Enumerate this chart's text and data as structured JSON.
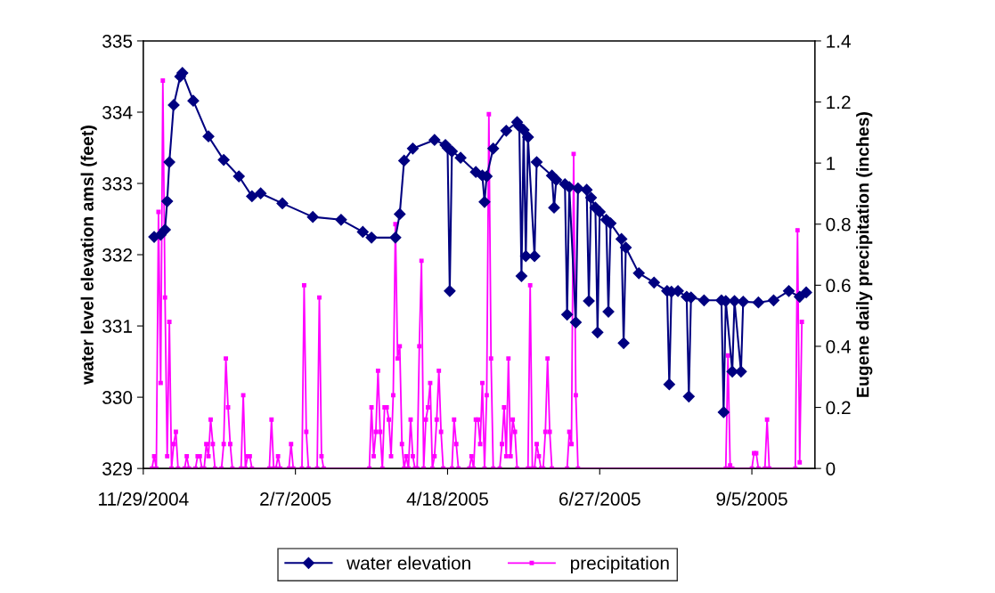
{
  "chart_data": {
    "type": "line",
    "ylabel": "water level elevation amsl (feet)",
    "y2label": "Eugene daily precipitation (inches)",
    "xlim": [
      "2004-11-29",
      "2005-10-04"
    ],
    "xticks": [
      {
        "value": "2004-11-29",
        "label": "11/29/2004"
      },
      {
        "value": "2005-02-07",
        "label": "2/7/2005"
      },
      {
        "value": "2005-04-18",
        "label": "4/18/2005"
      },
      {
        "value": "2005-06-27",
        "label": "6/27/2005"
      },
      {
        "value": "2005-09-05",
        "label": "9/5/2005"
      }
    ],
    "ylim": [
      329,
      335
    ],
    "yticks": [
      329,
      330,
      331,
      332,
      333,
      334,
      335
    ],
    "y2lim": [
      0,
      1.4
    ],
    "y2ticks": [
      0,
      0.2,
      0.4,
      0.6,
      0.8,
      1,
      1.2,
      1.4
    ],
    "grid": false,
    "legend": "bottom",
    "series": [
      {
        "name": "water elevation",
        "color": "#000080",
        "marker": "diamond",
        "x": [
          "2004-12-04",
          "2004-12-07",
          "2004-12-09",
          "2004-12-10",
          "2004-12-11",
          "2004-12-13",
          "2004-12-16",
          "2004-12-17",
          "2004-12-22",
          "2004-12-29",
          "2005-01-05",
          "2005-01-12",
          "2005-01-18",
          "2005-01-22",
          "2005-02-01",
          "2005-02-15",
          "2005-02-28",
          "2005-03-10",
          "2005-03-14",
          "2005-03-25",
          "2005-03-27",
          "2005-03-29",
          "2005-04-02",
          "2005-04-12",
          "2005-04-17",
          "2005-04-18",
          "2005-04-19",
          "2005-04-20",
          "2005-04-24",
          "2005-05-01",
          "2005-05-04",
          "2005-05-05",
          "2005-05-06",
          "2005-05-09",
          "2005-05-15",
          "2005-05-20",
          "2005-05-21",
          "2005-05-22",
          "2005-05-23",
          "2005-05-24",
          "2005-05-25",
          "2005-05-28",
          "2005-05-29",
          "2005-06-05",
          "2005-06-06",
          "2005-06-07",
          "2005-06-11",
          "2005-06-12",
          "2005-06-13",
          "2005-06-16",
          "2005-06-17",
          "2005-06-21",
          "2005-06-22",
          "2005-06-23",
          "2005-06-25",
          "2005-06-26",
          "2005-06-27",
          "2005-06-30",
          "2005-07-01",
          "2005-07-02",
          "2005-07-07",
          "2005-07-08",
          "2005-07-09",
          "2005-07-15",
          "2005-07-22",
          "2005-07-28",
          "2005-07-29",
          "2005-07-30",
          "2005-08-02",
          "2005-08-06",
          "2005-08-07",
          "2005-08-08",
          "2005-08-14",
          "2005-08-22",
          "2005-08-23",
          "2005-08-24",
          "2005-08-27",
          "2005-08-28",
          "2005-08-31",
          "2005-09-01",
          "2005-09-08",
          "2005-09-15",
          "2005-09-22",
          "2005-09-27",
          "2005-09-30"
        ],
        "values": [
          332.25,
          332.28,
          332.35,
          332.75,
          333.3,
          334.1,
          334.5,
          334.55,
          334.16,
          333.66,
          333.33,
          333.1,
          332.82,
          332.86,
          332.72,
          332.53,
          332.49,
          332.32,
          332.24,
          332.24,
          332.57,
          333.32,
          333.49,
          333.61,
          333.54,
          333.5,
          331.49,
          333.45,
          333.36,
          333.16,
          333.11,
          332.74,
          333.1,
          333.49,
          333.74,
          333.86,
          333.8,
          331.7,
          333.75,
          331.98,
          333.65,
          331.98,
          333.3,
          333.11,
          332.66,
          333.05,
          332.99,
          331.16,
          332.95,
          331.05,
          332.93,
          332.91,
          331.35,
          332.8,
          332.66,
          330.91,
          332.6,
          332.49,
          331.2,
          332.44,
          332.22,
          330.76,
          332.1,
          331.74,
          331.61,
          331.49,
          330.18,
          331.48,
          331.49,
          331.41,
          330.01,
          331.4,
          331.36,
          331.36,
          329.79,
          331.35,
          330.36,
          331.35,
          330.36,
          331.34,
          331.33,
          331.36,
          331.49,
          331.41,
          331.47
        ]
      },
      {
        "name": "precipitation",
        "color": "#ff00ff",
        "marker": "square",
        "axis": "y2",
        "x": [
          "2004-12-03",
          "2004-12-04",
          "2004-12-05",
          "2004-12-06",
          "2004-12-07",
          "2004-12-08",
          "2004-12-09",
          "2004-12-10",
          "2004-12-11",
          "2004-12-12",
          "2004-12-13",
          "2004-12-14",
          "2004-12-15",
          "2004-12-18",
          "2004-12-19",
          "2004-12-20",
          "2004-12-23",
          "2004-12-24",
          "2004-12-25",
          "2004-12-26",
          "2004-12-27",
          "2004-12-28",
          "2004-12-29",
          "2004-12-30",
          "2004-12-31",
          "2005-01-01",
          "2005-01-04",
          "2005-01-05",
          "2005-01-06",
          "2005-01-07",
          "2005-01-08",
          "2005-01-09",
          "2005-01-13",
          "2005-01-14",
          "2005-01-15",
          "2005-01-16",
          "2005-01-17",
          "2005-01-18",
          "2005-01-26",
          "2005-01-27",
          "2005-01-28",
          "2005-01-29",
          "2005-01-30",
          "2005-01-31",
          "2005-02-04",
          "2005-02-05",
          "2005-02-06",
          "2005-02-10",
          "2005-02-11",
          "2005-02-12",
          "2005-02-13",
          "2005-02-17",
          "2005-02-18",
          "2005-02-19",
          "2005-02-20",
          "2005-03-13",
          "2005-03-14",
          "2005-03-15",
          "2005-03-16",
          "2005-03-17",
          "2005-03-18",
          "2005-03-19",
          "2005-03-20",
          "2005-03-21",
          "2005-03-22",
          "2005-03-23",
          "2005-03-24",
          "2005-03-25",
          "2005-03-26",
          "2005-03-27",
          "2005-03-28",
          "2005-03-29",
          "2005-03-30",
          "2005-03-31",
          "2005-04-01",
          "2005-04-02",
          "2005-04-03",
          "2005-04-04",
          "2005-04-05",
          "2005-04-06",
          "2005-04-07",
          "2005-04-08",
          "2005-04-09",
          "2005-04-10",
          "2005-04-11",
          "2005-04-12",
          "2005-04-13",
          "2005-04-14",
          "2005-04-15",
          "2005-04-16",
          "2005-04-20",
          "2005-04-21",
          "2005-04-22",
          "2005-04-23",
          "2005-04-28",
          "2005-04-29",
          "2005-04-30",
          "2005-05-01",
          "2005-05-02",
          "2005-05-03",
          "2005-05-04",
          "2005-05-05",
          "2005-05-06",
          "2005-05-07",
          "2005-05-08",
          "2005-05-09",
          "2005-05-12",
          "2005-05-13",
          "2005-05-14",
          "2005-05-15",
          "2005-05-16",
          "2005-05-17",
          "2005-05-18",
          "2005-05-19",
          "2005-05-20",
          "2005-05-25",
          "2005-05-26",
          "2005-05-27",
          "2005-05-28",
          "2005-05-29",
          "2005-05-30",
          "2005-05-31",
          "2005-06-01",
          "2005-06-02",
          "2005-06-03",
          "2005-06-04",
          "2005-06-05",
          "2005-06-12",
          "2005-06-13",
          "2005-06-14",
          "2005-06-15",
          "2005-06-16",
          "2005-06-17",
          "2005-08-24",
          "2005-08-25",
          "2005-08-26",
          "2005-08-27",
          "2005-09-05",
          "2005-09-06",
          "2005-09-07",
          "2005-09-08",
          "2005-09-11",
          "2005-09-12",
          "2005-09-13",
          "2005-09-25",
          "2005-09-26",
          "2005-09-27",
          "2005-09-28"
        ],
        "values": [
          0,
          0.04,
          0,
          0.84,
          0.28,
          1.27,
          0.56,
          0.04,
          0.48,
          0,
          0.08,
          0.12,
          0,
          0,
          0.04,
          0,
          0,
          0.04,
          0.04,
          0,
          0,
          0.08,
          0.04,
          0.16,
          0.08,
          0,
          0,
          0.08,
          0.36,
          0.2,
          0.08,
          0,
          0,
          0.24,
          0,
          0.04,
          0.04,
          0,
          0,
          0.16,
          0,
          0,
          0.04,
          0,
          0,
          0.08,
          0,
          0,
          0.6,
          0.12,
          0,
          0,
          0.56,
          0.04,
          0,
          0,
          0.2,
          0.04,
          0.12,
          0.32,
          0.12,
          0,
          0.2,
          0.2,
          0.16,
          0.04,
          0.24,
          0.8,
          0.36,
          0.4,
          0.08,
          0,
          0.04,
          0,
          0.16,
          0.04,
          0,
          0,
          0.4,
          0.68,
          0,
          0.16,
          0.2,
          0.28,
          0,
          0.04,
          0.16,
          0.32,
          0.12,
          0,
          0,
          0.16,
          0.08,
          0,
          0,
          0.04,
          0,
          0.16,
          0.16,
          0.08,
          0.28,
          0,
          0.24,
          1.16,
          0.36,
          0,
          0,
          0.08,
          0.2,
          0.04,
          0.36,
          0.04,
          0.16,
          0.12,
          0,
          0,
          0.6,
          0,
          0,
          0.08,
          0.04,
          0,
          0,
          0.12,
          0.36,
          0.12,
          0,
          0,
          0.12,
          0.08,
          1.03,
          0.24,
          0,
          0,
          0.37,
          0.01,
          0,
          0,
          0.05,
          0.05,
          0,
          0,
          0.16,
          0,
          0,
          0.78,
          0.02,
          0.48
        ]
      }
    ]
  }
}
